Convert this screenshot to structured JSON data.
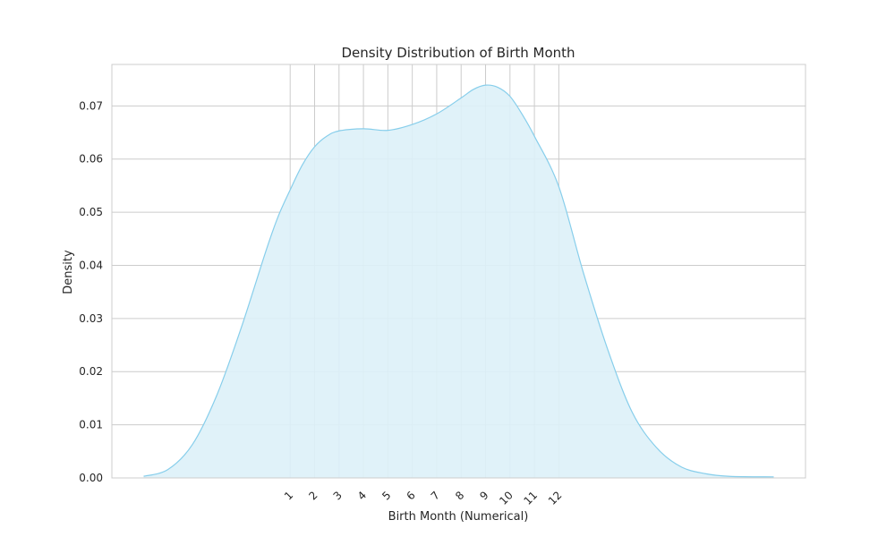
{
  "chart_data": {
    "type": "area",
    "title": "Density Distribution of Birth Month",
    "xlabel": "Birth Month (Numerical)",
    "ylabel": "Density",
    "xlim": [
      -6.3,
      22.1
    ],
    "ylim": [
      0,
      0.0778
    ],
    "x_ticks": [
      1,
      2,
      3,
      4,
      5,
      6,
      7,
      8,
      9,
      10,
      11,
      12
    ],
    "y_ticks": [
      0.0,
      0.01,
      0.02,
      0.03,
      0.04,
      0.05,
      0.06,
      0.07
    ],
    "y_tick_labels": [
      "0.00",
      "0.01",
      "0.02",
      "0.03",
      "0.04",
      "0.05",
      "0.06",
      "0.07"
    ],
    "grid": true,
    "colors": {
      "line": "#87ceeb",
      "fill": "#ddf1f8"
    },
    "series": [
      {
        "x": [
          -5.0,
          -4.0,
          -3.0,
          -2.0,
          -1.0,
          0.0,
          0.5,
          1.0,
          1.5,
          2.0,
          2.5,
          3.0,
          4.0,
          5.0,
          6.0,
          7.0,
          8.0,
          8.5,
          9.0,
          9.5,
          10.0,
          10.5,
          11.0,
          12.0,
          13.0,
          14.0,
          15.0,
          16.0,
          17.0,
          18.0,
          19.0,
          20.8
        ],
        "y": [
          0.0003,
          0.0016,
          0.0063,
          0.0156,
          0.0283,
          0.0426,
          0.0491,
          0.0542,
          0.0589,
          0.0623,
          0.0643,
          0.0653,
          0.0657,
          0.0654,
          0.0665,
          0.0685,
          0.0715,
          0.0731,
          0.0739,
          0.0735,
          0.0718,
          0.0684,
          0.0643,
          0.0548,
          0.0387,
          0.0242,
          0.0124,
          0.0057,
          0.0021,
          0.0008,
          0.0003,
          0.0002
        ]
      }
    ]
  }
}
